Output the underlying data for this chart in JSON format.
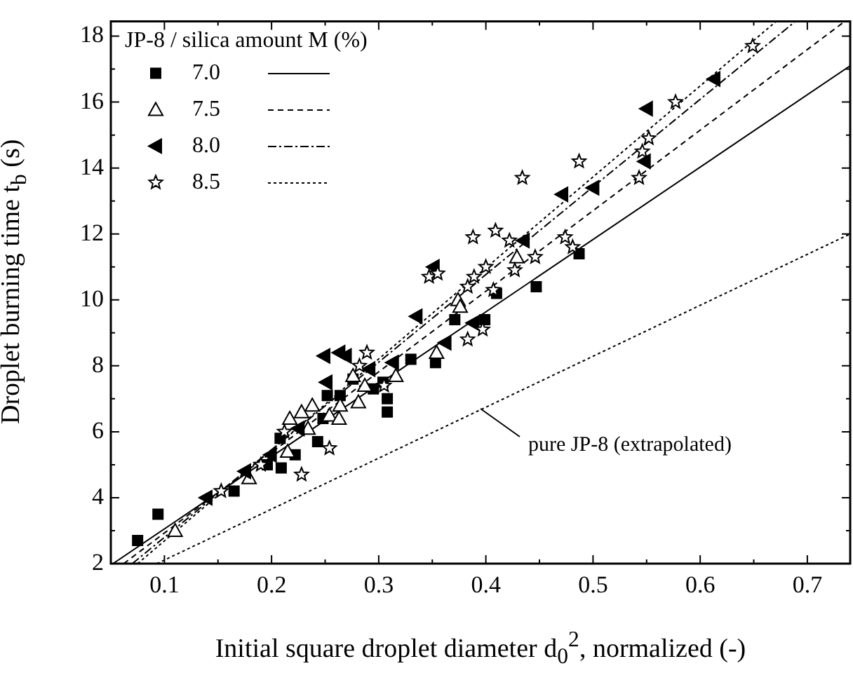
{
  "chart_data": {
    "type": "scatter",
    "xlabel": "Initial square droplet diameter d$_{0}$$^{2}$, normalized (-)",
    "ylabel": "Droplet burning time t$_{b}$ (s)",
    "legend_title": "JP-8 / silica amount M (%)",
    "legend": "top left",
    "xlim": [
      0.05,
      0.74
    ],
    "ylim": [
      2,
      18.45
    ],
    "xticks": [
      0.1,
      {
        "value": 0.15,
        "label": null
      },
      0.2,
      {
        "value": 0.25,
        "label": null
      },
      0.3,
      {
        "value": 0.35,
        "label": null
      },
      0.4,
      {
        "value": 0.45,
        "label": null
      },
      0.5,
      {
        "value": 0.55,
        "label": null
      },
      0.6,
      {
        "value": 0.65,
        "label": null
      },
      0.7
    ],
    "yticks": [
      2,
      {
        "value": 3,
        "label": null
      },
      4,
      {
        "value": 5,
        "label": null
      },
      6,
      {
        "value": 7,
        "label": null
      },
      8,
      {
        "value": 9,
        "label": null
      },
      10,
      {
        "value": 11,
        "label": null
      },
      12,
      {
        "value": 13,
        "label": null
      },
      14,
      {
        "value": 15,
        "label": null
      },
      16,
      {
        "value": 17,
        "label": null
      },
      18
    ],
    "grid": false,
    "series": [
      {
        "name": "7.0",
        "type": "scatter",
        "marker": "square",
        "line_style": "solid",
        "color": "#000000",
        "x": [
          0.075,
          0.094,
          0.165,
          0.196,
          0.209,
          0.208,
          0.222,
          0.243,
          0.248,
          0.252,
          0.264,
          0.276,
          0.295,
          0.304,
          0.308,
          0.308,
          0.33,
          0.353,
          0.371,
          0.399,
          0.41,
          0.447,
          0.487
        ],
        "values": [
          2.7,
          3.5,
          4.2,
          5.0,
          4.9,
          5.8,
          5.3,
          5.7,
          6.4,
          7.1,
          7.1,
          7.6,
          7.3,
          7.5,
          7.0,
          6.6,
          8.2,
          8.1,
          9.4,
          9.4,
          10.2,
          10.4,
          11.4
        ]
      },
      {
        "type": "line",
        "line_style": "solid",
        "color": "#000000",
        "x": [
          0.052,
          0.74
        ],
        "values": [
          2,
          17.1
        ]
      },
      {
        "name": "7.5",
        "type": "scatter",
        "marker": "triangle-open",
        "line_style": "dashed",
        "color": "#000000",
        "x": [
          0.11,
          0.179,
          0.215,
          0.217,
          0.228,
          0.234,
          0.238,
          0.254,
          0.263,
          0.264,
          0.276,
          0.281,
          0.287,
          0.316,
          0.354,
          0.374,
          0.376,
          0.429
        ],
        "values": [
          3.0,
          4.6,
          5.4,
          6.4,
          6.6,
          6.1,
          6.8,
          6.5,
          6.4,
          6.8,
          7.7,
          6.9,
          7.4,
          7.7,
          8.4,
          10.0,
          9.8,
          11.3
        ]
      },
      {
        "type": "line",
        "line_style": "dashed",
        "color": "#000000",
        "x": [
          0.062,
          0.735
        ],
        "values": [
          2,
          18.45
        ]
      },
      {
        "name": "8.0",
        "type": "scatter",
        "marker": "triangle-left",
        "line_style": "dashdot",
        "color": "#000000",
        "x": [
          0.139,
          0.175,
          0.199,
          0.225,
          0.251,
          0.249,
          0.263,
          0.269,
          0.291,
          0.313,
          0.335,
          0.351,
          0.362,
          0.388,
          0.435,
          0.471,
          0.5,
          0.548,
          0.55,
          0.613
        ],
        "values": [
          4.0,
          4.8,
          5.3,
          6.1,
          7.5,
          8.3,
          8.4,
          8.3,
          7.9,
          8.1,
          9.5,
          11.0,
          8.7,
          9.3,
          11.8,
          13.2,
          13.4,
          14.2,
          15.8,
          16.7
        ]
      },
      {
        "type": "line",
        "line_style": "dashdot",
        "color": "#000000",
        "x": [
          0.07,
          0.689
        ],
        "values": [
          2,
          18.45
        ]
      },
      {
        "name": "8.5",
        "type": "scatter",
        "marker": "star-open",
        "line_style": "dotted",
        "color": "#000000",
        "x": [
          0.153,
          0.19,
          0.212,
          0.228,
          0.254,
          0.282,
          0.289,
          0.305,
          0.347,
          0.355,
          0.383,
          0.383,
          0.388,
          0.389,
          0.397,
          0.4,
          0.407,
          0.409,
          0.422,
          0.427,
          0.434,
          0.446,
          0.474,
          0.481,
          0.487,
          0.543,
          0.546,
          0.552,
          0.577,
          0.649
        ],
        "values": [
          4.2,
          5.0,
          6.0,
          4.7,
          5.5,
          8.0,
          8.4,
          7.4,
          10.7,
          10.8,
          8.8,
          10.4,
          11.9,
          10.7,
          9.1,
          11.0,
          10.3,
          12.1,
          11.8,
          10.9,
          13.7,
          11.3,
          11.9,
          11.6,
          14.2,
          13.7,
          14.5,
          14.9,
          16.0,
          17.7
        ]
      },
      {
        "type": "line",
        "line_style": "dotted",
        "color": "#000000",
        "x": [
          0.075,
          0.671
        ],
        "values": [
          2,
          18.45
        ]
      },
      {
        "type": "line",
        "line_style": "dotted",
        "color": "#000000",
        "x": [
          0.093,
          0.74
        ],
        "values": [
          2,
          12.0
        ]
      }
    ],
    "annotations": [
      {
        "text": "pure JP-8 (extrapolated)",
        "x": 0.395,
        "y": 6.7
      }
    ]
  }
}
